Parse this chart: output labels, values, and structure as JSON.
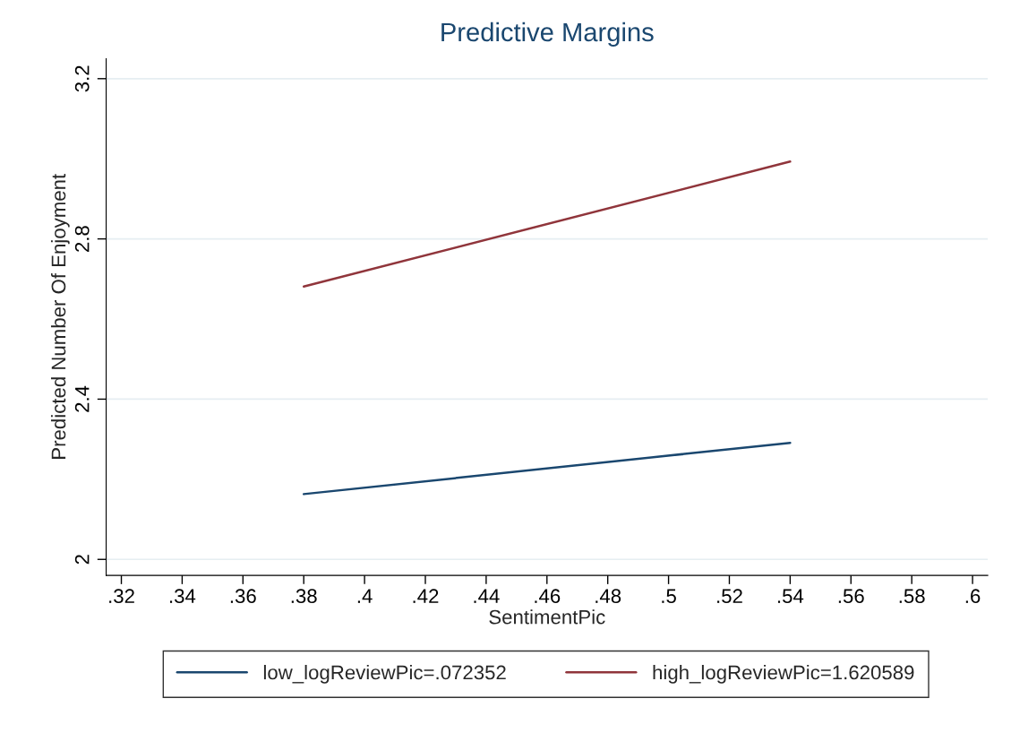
{
  "chart_data": {
    "type": "line",
    "title": "Predictive Margins",
    "xlabel": "SentimentPic",
    "ylabel": "Predicted Number Of Enjoyment",
    "x": [
      0.38,
      0.54
    ],
    "series": [
      {
        "name": "low_logReviewPic=.072352",
        "color": "#1a476f",
        "values": [
          2.163,
          2.291
        ]
      },
      {
        "name": "high_logReviewPic=1.620589",
        "color": "#90353b",
        "values": [
          2.681,
          2.993
        ]
      }
    ],
    "xlim": [
      0.315,
      0.605
    ],
    "xticks": [
      {
        "value": 0.32,
        "label": ".32"
      },
      {
        "value": 0.34,
        "label": ".34"
      },
      {
        "value": 0.36,
        "label": ".36"
      },
      {
        "value": 0.38,
        "label": ".38"
      },
      {
        "value": 0.4,
        "label": ".4"
      },
      {
        "value": 0.42,
        "label": ".42"
      },
      {
        "value": 0.44,
        "label": ".44"
      },
      {
        "value": 0.46,
        "label": ".46"
      },
      {
        "value": 0.48,
        "label": ".48"
      },
      {
        "value": 0.5,
        "label": ".5"
      },
      {
        "value": 0.52,
        "label": ".52"
      },
      {
        "value": 0.54,
        "label": ".54"
      },
      {
        "value": 0.56,
        "label": ".56"
      },
      {
        "value": 0.58,
        "label": ".58"
      },
      {
        "value": 0.6,
        "label": ".6"
      }
    ],
    "ylim": [
      1.96,
      3.25
    ],
    "yticks": [
      2,
      2.4,
      2.8,
      3.2
    ],
    "grid": "y",
    "legend": "bottom",
    "marker": "none",
    "line_style": "solid"
  }
}
